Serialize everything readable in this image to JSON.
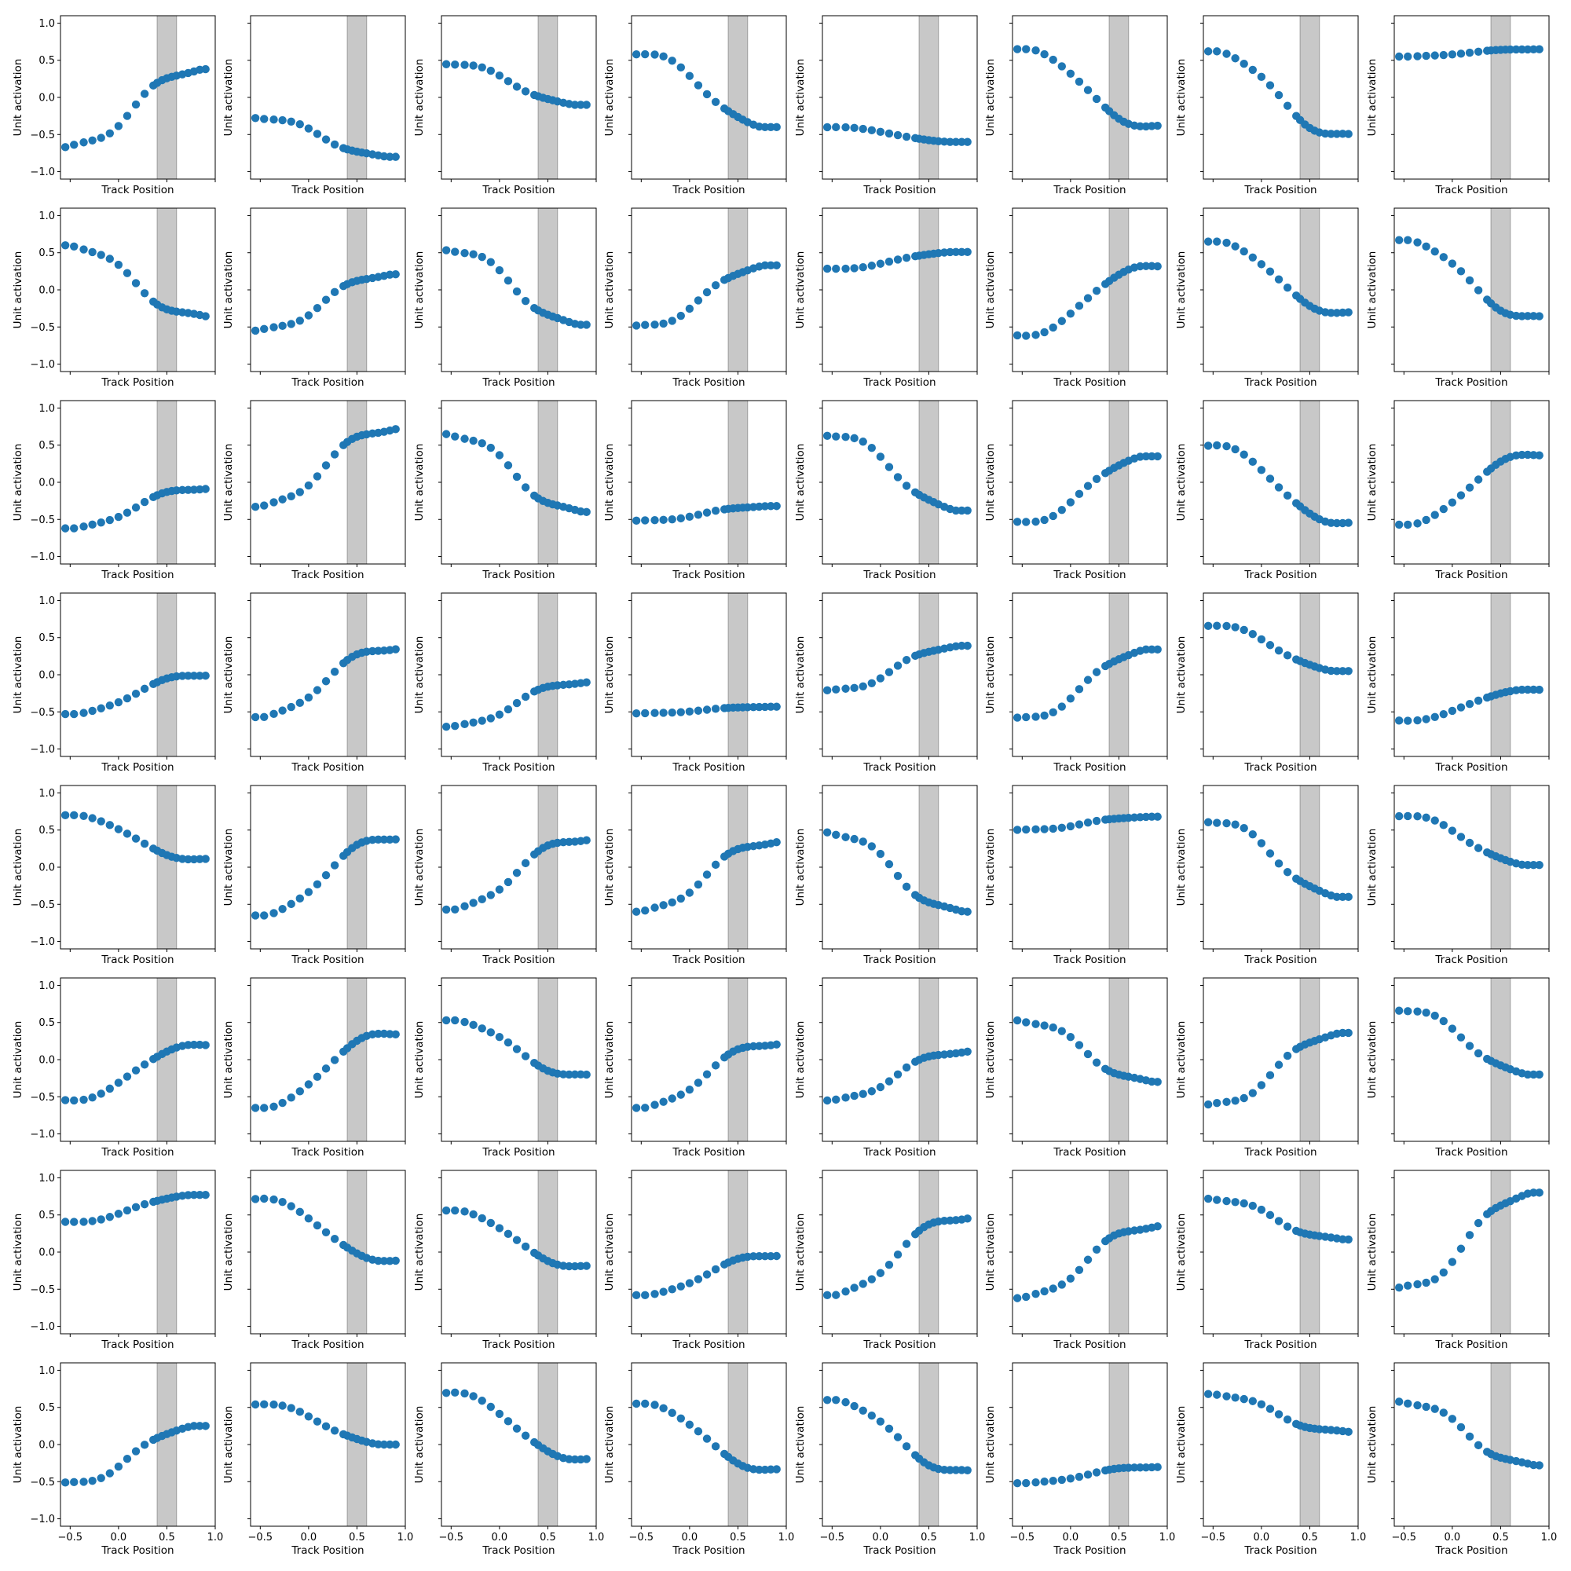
{
  "figure": {
    "ylabel": "Unit activation",
    "xlabel": "Track Position",
    "marker_color": "#1f77b4",
    "band_color": "#c8c8c8",
    "xticks": [
      "−0.5",
      "0.0",
      "0.5",
      "1.0"
    ],
    "yticks": [
      "1.0",
      "0.5",
      "0.0",
      "−0.5",
      "−1.0"
    ]
  },
  "chart_data": {
    "type": "scatter",
    "layout": "8x8 grid of small multiples, shared x and y axes",
    "xlim": [
      -0.6,
      1.0
    ],
    "ylim": [
      -1.1,
      1.1
    ],
    "x_tick_values": [
      -0.5,
      0.0,
      0.5,
      1.0
    ],
    "y_tick_values": [
      -1.0,
      -0.5,
      0.0,
      0.5,
      1.0
    ],
    "x_tick_labels_shown_on": "bottom row only",
    "y_tick_labels_shown_on": "left column only",
    "shaded_band": [
      0.4,
      0.6
    ],
    "x": [
      -0.55,
      -0.46,
      -0.36,
      -0.27,
      -0.18,
      -0.09,
      0.0,
      0.09,
      0.18,
      0.27,
      0.36,
      0.4,
      0.45,
      0.5,
      0.55,
      0.6,
      0.66,
      0.72,
      0.78,
      0.84,
      0.9
    ],
    "panel_endpoints": [
      [
        -0.67,
        0.38
      ],
      [
        -0.27,
        -0.8
      ],
      [
        0.46,
        -0.1
      ],
      [
        0.6,
        -0.4
      ],
      [
        -0.4,
        -0.6
      ],
      [
        0.65,
        -0.4
      ],
      [
        0.62,
        -0.52
      ],
      [
        0.55,
        0.65
      ],
      [
        0.6,
        -0.36
      ],
      [
        -0.55,
        0.21
      ],
      [
        0.55,
        -0.47
      ],
      [
        -0.5,
        0.33
      ],
      [
        0.28,
        0.51
      ],
      [
        -0.62,
        0.32
      ],
      [
        0.65,
        -0.32
      ],
      [
        0.67,
        -0.38
      ],
      [
        -0.62,
        -0.08
      ],
      [
        -0.33,
        0.72
      ],
      [
        0.65,
        -0.4
      ],
      [
        -0.52,
        -0.32
      ],
      [
        0.65,
        -0.38
      ],
      [
        -0.55,
        0.35
      ],
      [
        0.5,
        -0.55
      ],
      [
        -0.57,
        0.38
      ],
      [
        -0.53,
        0.0
      ],
      [
        -0.57,
        0.36
      ],
      [
        -0.7,
        -0.1
      ],
      [
        -0.52,
        -0.43
      ],
      [
        -0.22,
        0.39
      ],
      [
        -0.6,
        0.34
      ],
      [
        0.67,
        0.05
      ],
      [
        -0.62,
        -0.2
      ],
      [
        0.7,
        0.1
      ],
      [
        -0.65,
        0.4
      ],
      [
        -0.57,
        0.38
      ],
      [
        -0.6,
        0.34
      ],
      [
        0.47,
        -0.6
      ],
      [
        0.5,
        0.68
      ],
      [
        0.63,
        -0.4
      ],
      [
        0.7,
        0.03
      ],
      [
        -0.55,
        0.2
      ],
      [
        -0.65,
        0.36
      ],
      [
        0.53,
        -0.22
      ],
      [
        -0.65,
        0.22
      ],
      [
        -0.55,
        0.11
      ],
      [
        0.53,
        -0.3
      ],
      [
        -0.62,
        0.36
      ],
      [
        0.68,
        -0.2
      ],
      [
        0.4,
        0.77
      ],
      [
        0.72,
        -0.12
      ],
      [
        0.56,
        -0.2
      ],
      [
        -0.58,
        -0.04
      ],
      [
        -0.58,
        0.47
      ],
      [
        -0.62,
        0.35
      ],
      [
        0.72,
        0.17
      ],
      [
        -0.5,
        0.8
      ],
      [
        -0.53,
        0.25
      ],
      [
        0.55,
        0.0
      ],
      [
        0.7,
        -0.2
      ],
      [
        0.55,
        -0.35
      ],
      [
        0.6,
        -0.37
      ],
      [
        -0.52,
        -0.3
      ],
      [
        0.68,
        0.17
      ],
      [
        0.58,
        -0.28
      ]
    ]
  }
}
